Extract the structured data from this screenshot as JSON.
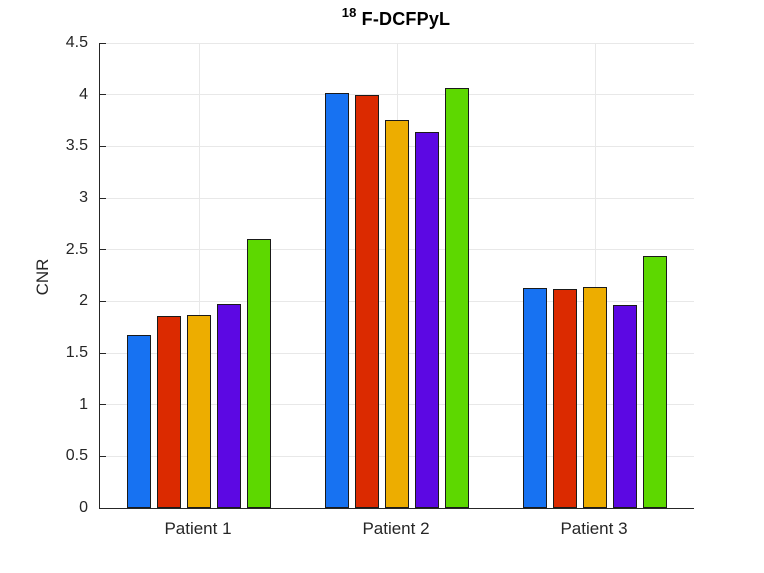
{
  "figure": {
    "title_superscript": "18",
    "title_main": "F-DCFPyL",
    "background_color": "#ffffff"
  },
  "chart_data": {
    "type": "bar",
    "title": "18F-DCFPyL",
    "categories": [
      "Patient 1",
      "Patient 2",
      "Patient 3"
    ],
    "series": [
      {
        "name": "series-1-blue",
        "color": "#1772F2",
        "values": [
          1.67,
          4.02,
          2.13
        ]
      },
      {
        "name": "series-2-red",
        "color": "#DB2A00",
        "values": [
          1.86,
          4.0,
          2.12
        ]
      },
      {
        "name": "series-3-orange",
        "color": "#EDAD00",
        "values": [
          1.87,
          3.75,
          2.14
        ]
      },
      {
        "name": "series-4-purple",
        "color": "#5C08E3",
        "values": [
          1.97,
          3.64,
          1.96
        ]
      },
      {
        "name": "series-5-green",
        "color": "#5DD800",
        "values": [
          2.6,
          4.06,
          2.44
        ]
      }
    ],
    "xlabel": "",
    "ylabel": "CNR",
    "ylim": [
      0,
      4.5
    ],
    "yticks": [
      0,
      0.5,
      1,
      1.5,
      2,
      2.5,
      3,
      3.5,
      4,
      4.5
    ],
    "ytick_labels": [
      "0",
      "0.5",
      "1",
      "1.5",
      "2",
      "2.5",
      "3",
      "3.5",
      "4",
      "4.5"
    ],
    "grid": true,
    "legend": "none",
    "axis_color": "#262626",
    "grid_color": "#E8E8E8",
    "bar_edge_color": "#1A1A1A"
  }
}
